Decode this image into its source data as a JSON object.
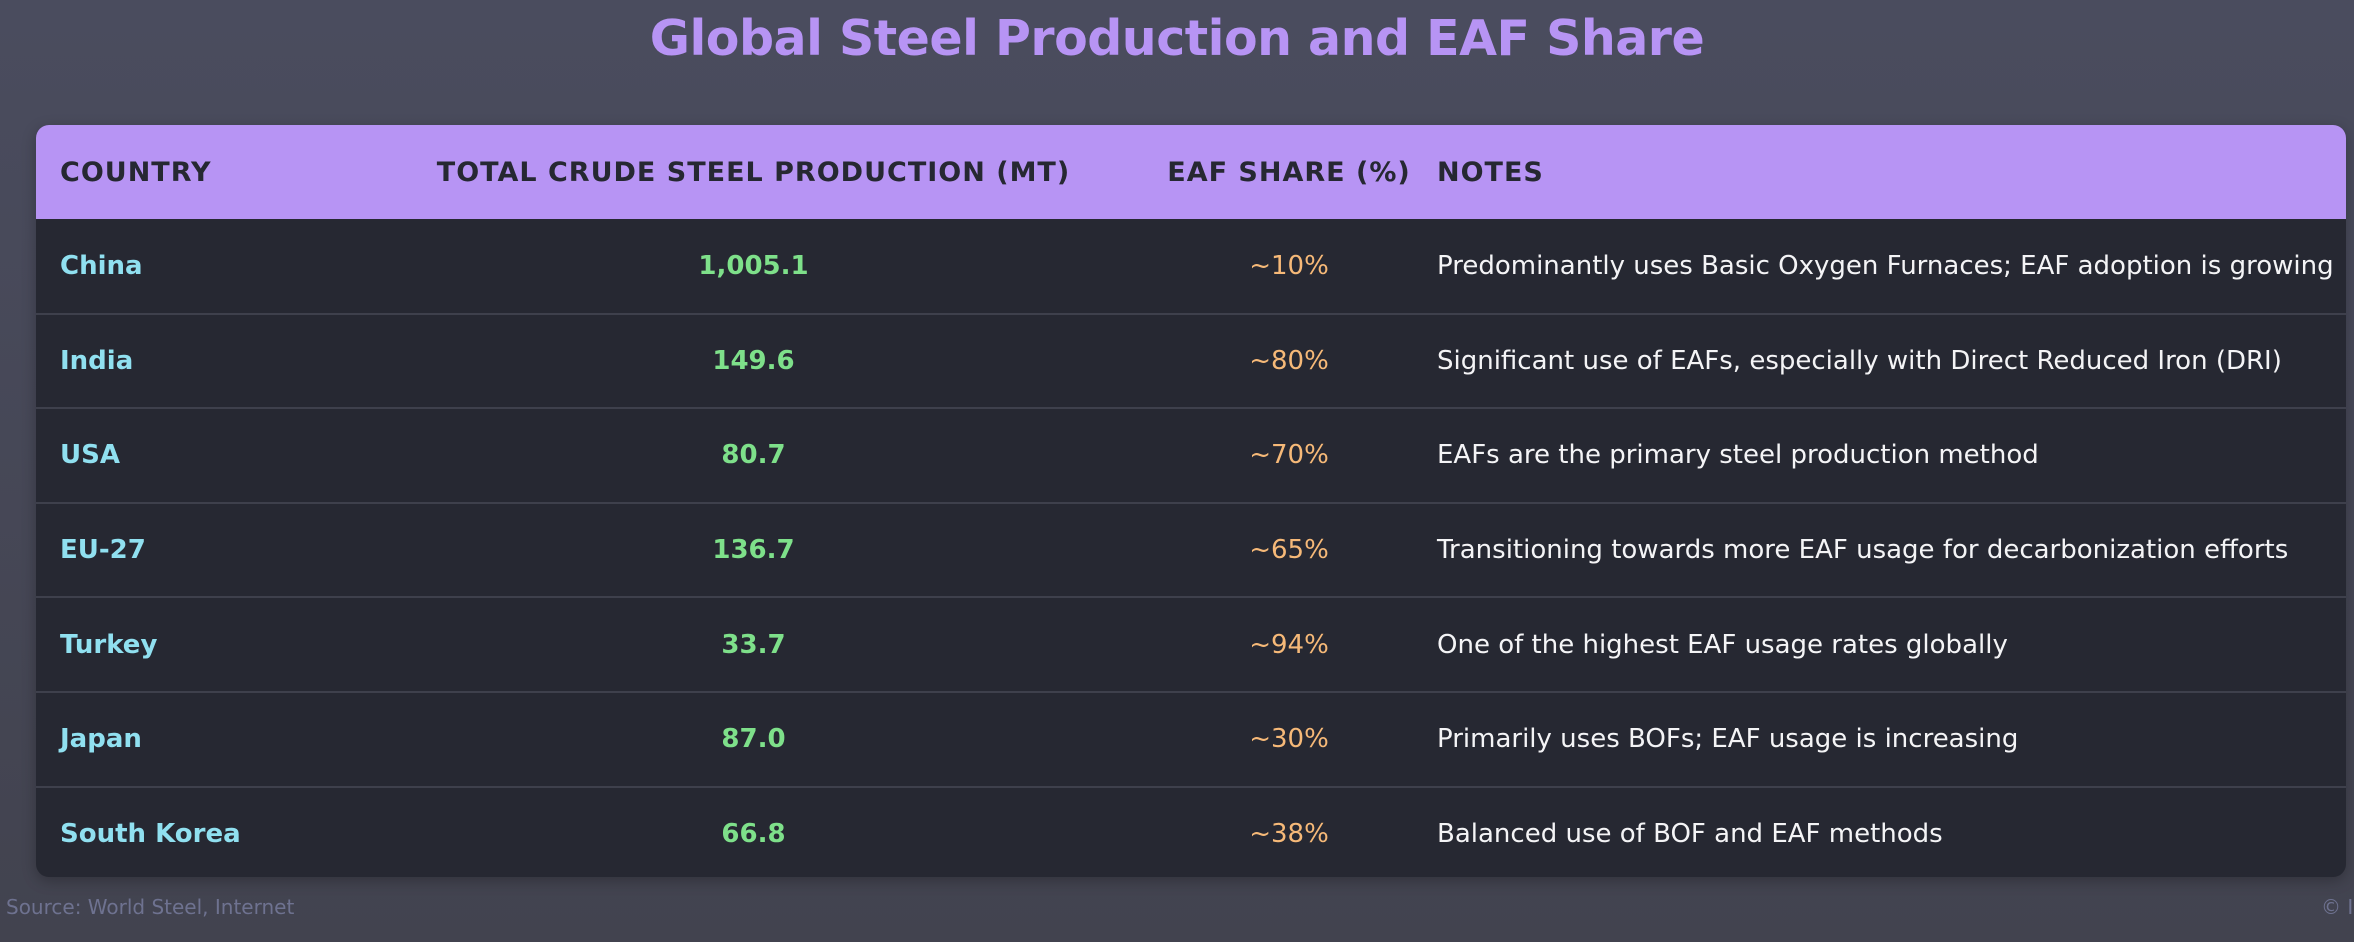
{
  "title": "Global Steel Production and EAF Share",
  "chart_data": {
    "type": "table",
    "title": "Global Steel Production and EAF Share",
    "columns": [
      "Country",
      "Total Crude Steel Production (MT)",
      "EAF Share (%)",
      "Notes"
    ],
    "rows": [
      {
        "country": "China",
        "production": "1,005.1",
        "eaf_share": "~10%",
        "notes": "Predominantly uses Basic Oxygen Furnaces; EAF adoption is growing"
      },
      {
        "country": "India",
        "production": "149.6",
        "eaf_share": "~80%",
        "notes": "Significant use of EAFs, especially with Direct Reduced Iron (DRI)"
      },
      {
        "country": "USA",
        "production": "80.7",
        "eaf_share": "~70%",
        "notes": "EAFs are the primary steel production method"
      },
      {
        "country": "EU-27",
        "production": "136.7",
        "eaf_share": "~65%",
        "notes": "Transitioning towards more EAF usage for decarbonization efforts"
      },
      {
        "country": "Turkey",
        "production": "33.7",
        "eaf_share": "~94%",
        "notes": "One of the highest EAF usage rates globally"
      },
      {
        "country": "Japan",
        "production": "87.0",
        "eaf_share": "~30%",
        "notes": "Primarily uses BOFs; EAF usage is increasing"
      },
      {
        "country": "South Korea",
        "production": "66.8",
        "eaf_share": "~38%",
        "notes": "Balanced use of BOF and EAF methods"
      }
    ]
  },
  "footer": {
    "source": "Source: World Steel, Internet",
    "copyright": "© I"
  },
  "colors": {
    "background": "#454757",
    "accent": "#b794f4",
    "country": "#90e0f0",
    "production": "#7ee08a",
    "eaf_share": "#f6b978",
    "notes": "#f4f4f6",
    "table_bg": "#262832"
  }
}
